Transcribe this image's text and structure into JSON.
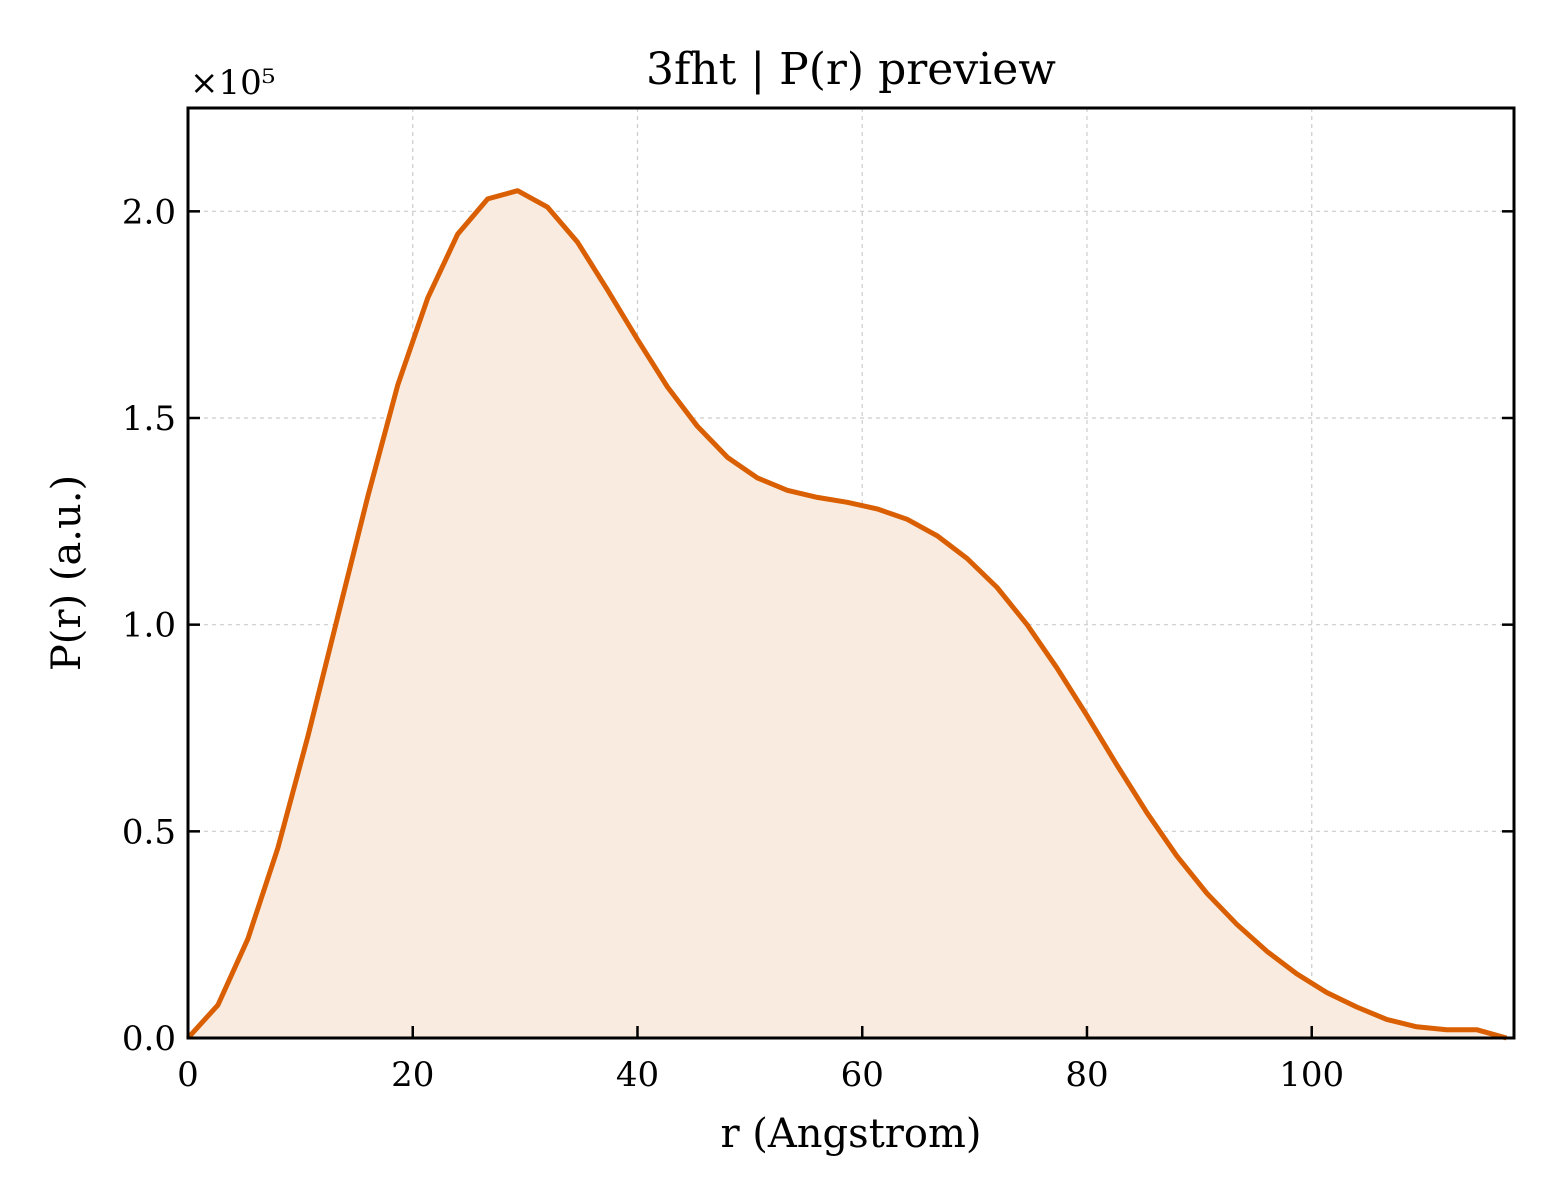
{
  "chart_data": {
    "type": "area",
    "title": "3fht | P(r) preview",
    "xlabel": "r (Angstrom)",
    "ylabel": "P(r) (a.u.)",
    "y_offset_label": "×10⁵",
    "y_scale": 100000,
    "xlim": [
      0,
      118
    ],
    "ylim": [
      0,
      2.25
    ],
    "x_ticks": [
      0,
      20,
      40,
      60,
      80,
      100
    ],
    "x_tick_labels": [
      "0",
      "20",
      "40",
      "60",
      "80",
      "100"
    ],
    "y_ticks": [
      0,
      0.5,
      1.0,
      1.5,
      2.0
    ],
    "y_tick_labels": [
      "0.0",
      "0.5",
      "1.0",
      "1.5",
      "2.0"
    ],
    "grid": true,
    "line_color": "#d95f02",
    "fill_color": "#f9ebe0",
    "series": [
      {
        "x": [
          0,
          2.67,
          5.33,
          8.0,
          10.67,
          13.33,
          16.0,
          18.67,
          21.33,
          24.0,
          26.67,
          29.33,
          32.0,
          34.67,
          37.33,
          40.0,
          42.67,
          45.33,
          48.0,
          50.67,
          53.33,
          56.0,
          58.67,
          61.33,
          64.0,
          66.67,
          69.33,
          72.0,
          74.67,
          77.33,
          80.0,
          82.67,
          85.33,
          88.0,
          90.67,
          93.33,
          96.0,
          98.67,
          101.33,
          104.0,
          106.67,
          109.33,
          112.0,
          114.67,
          117.33
        ],
        "y": [
          0.0,
          0.08,
          0.24,
          0.46,
          0.73,
          1.02,
          1.31,
          1.58,
          1.79,
          1.945,
          2.03,
          2.05,
          2.01,
          1.925,
          1.81,
          1.69,
          1.575,
          1.48,
          1.405,
          1.355,
          1.325,
          1.308,
          1.296,
          1.28,
          1.255,
          1.215,
          1.16,
          1.09,
          1.0,
          0.895,
          0.78,
          0.66,
          0.545,
          0.44,
          0.35,
          0.275,
          0.21,
          0.155,
          0.11,
          0.075,
          0.045,
          0.027,
          0.02,
          0.02,
          0.0
        ]
      }
    ]
  }
}
